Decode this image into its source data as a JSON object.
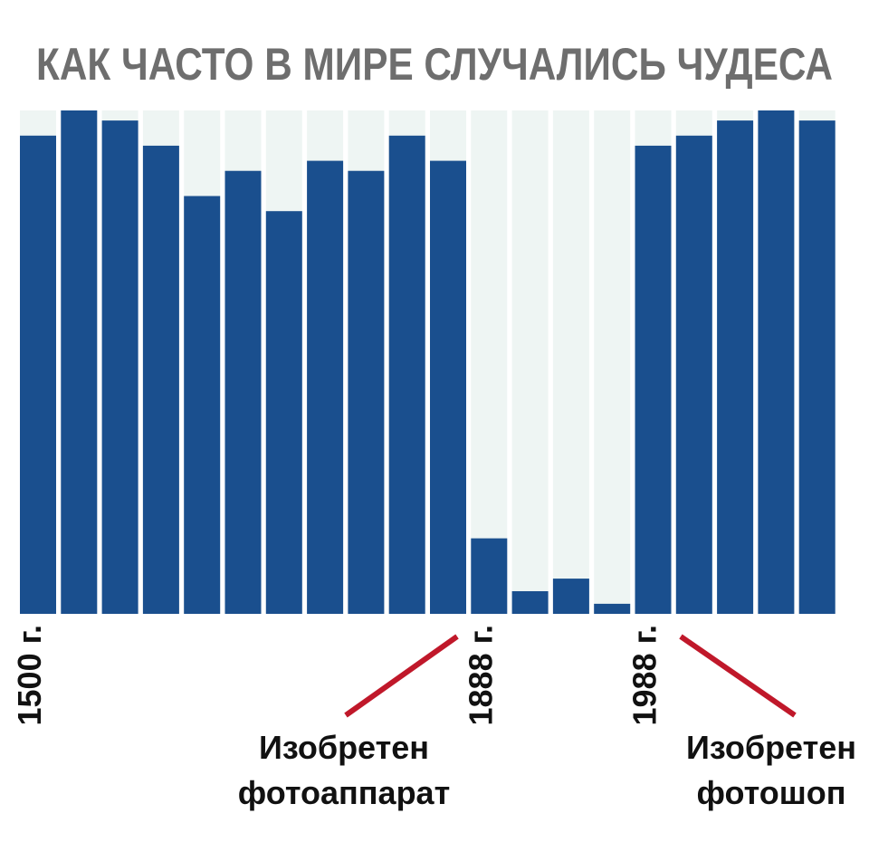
{
  "chart_data": {
    "type": "bar",
    "title": "КАК ЧАСТО В МИРЕ СЛУЧАЛИСЬ  ЧУДЕСА",
    "xlabel": "",
    "ylabel": "",
    "ylim": [
      0,
      100
    ],
    "grid": false,
    "legend": "none",
    "values": [
      95,
      100,
      98,
      93,
      83,
      88,
      80,
      90,
      88,
      95,
      90,
      15,
      4.5,
      7,
      2,
      93,
      95,
      98,
      100,
      98
    ],
    "tick_labels": [
      {
        "bar_index": 0,
        "text": "1500 г."
      },
      {
        "bar_index": 11,
        "text": "1888 г."
      },
      {
        "bar_index": 15,
        "text": "1988 г."
      }
    ],
    "annotations": [
      {
        "lines": [
          "Изобретен",
          "фотоаппарат"
        ],
        "points_to": "1888 г."
      },
      {
        "lines": [
          "Изобретен",
          "фотошоп"
        ],
        "points_to": "1988 г."
      }
    ],
    "colors": {
      "bar": "#1a4f8e",
      "background_stripe": "#eef5f3",
      "annotation_line": "#c0182a",
      "title": "#6e6e6e"
    }
  }
}
